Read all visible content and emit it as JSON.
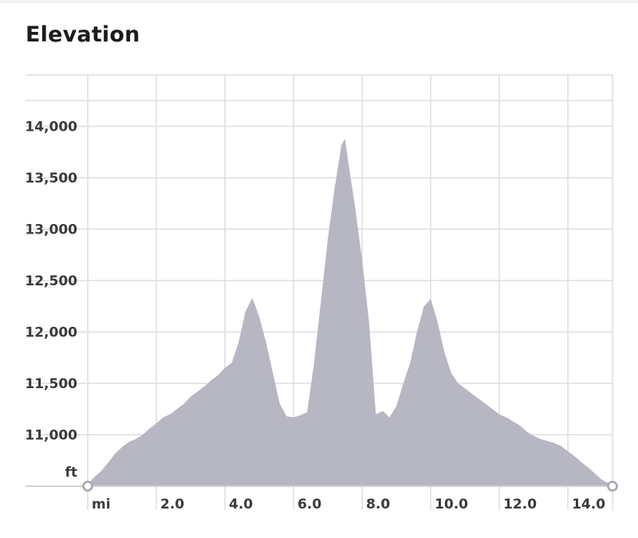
{
  "header": {
    "title": "Elevation"
  },
  "chart_data": {
    "type": "area",
    "title": "Elevation",
    "xunit": "mi",
    "yunit": "ft",
    "xlim": [
      0,
      15.3
    ],
    "ylim": [
      10500,
      14500
    ],
    "yticks": [
      "11,000",
      "11,500",
      "12,000",
      "12,500",
      "13,000",
      "13,500",
      "14,000"
    ],
    "ytick_values": [
      11000,
      11500,
      12000,
      12500,
      13000,
      13500,
      14000
    ],
    "xticks": [
      "2.0",
      "4.0",
      "6.0",
      "8.0",
      "10.0",
      "12.0",
      "14.0"
    ],
    "xtick_values": [
      2,
      4,
      6,
      8,
      10,
      12,
      14
    ],
    "grid": true,
    "fill_color": "#b7b6c3",
    "grid_color": "#dedde2",
    "series": [
      {
        "x": [
          0.0,
          0.2,
          0.4,
          0.6,
          0.8,
          1.0,
          1.2,
          1.4,
          1.6,
          1.8,
          2.0,
          2.2,
          2.4,
          2.6,
          2.8,
          3.0,
          3.2,
          3.4,
          3.6,
          3.8,
          4.0,
          4.2,
          4.4,
          4.6,
          4.8,
          5.0,
          5.2,
          5.4,
          5.6,
          5.8,
          6.0,
          6.2,
          6.4,
          6.6,
          6.8,
          7.0,
          7.2,
          7.4,
          7.5,
          7.6,
          7.8,
          8.0,
          8.2,
          8.4,
          8.6,
          8.8,
          9.0,
          9.2,
          9.4,
          9.6,
          9.8,
          10.0,
          10.2,
          10.4,
          10.6,
          10.8,
          11.0,
          11.2,
          11.4,
          11.6,
          11.8,
          12.0,
          12.2,
          12.4,
          12.6,
          12.8,
          13.0,
          13.2,
          13.4,
          13.6,
          13.8,
          14.0,
          14.2,
          14.4,
          14.6,
          14.8,
          15.0,
          15.3
        ],
        "y": [
          10520,
          10590,
          10650,
          10730,
          10820,
          10880,
          10930,
          10960,
          11000,
          11060,
          11110,
          11170,
          11200,
          11250,
          11300,
          11370,
          11420,
          11470,
          11530,
          11580,
          11650,
          11700,
          11900,
          12200,
          12330,
          12150,
          11900,
          11600,
          11300,
          11180,
          11170,
          11190,
          11220,
          11700,
          12300,
          12900,
          13400,
          13820,
          13880,
          13650,
          13200,
          12700,
          12100,
          11200,
          11230,
          11170,
          11280,
          11500,
          11700,
          12000,
          12250,
          12320,
          12100,
          11800,
          11600,
          11500,
          11450,
          11400,
          11350,
          11300,
          11250,
          11200,
          11170,
          11130,
          11090,
          11030,
          10990,
          10960,
          10940,
          10920,
          10890,
          10840,
          10790,
          10730,
          10680,
          10620,
          10560,
          10510
        ]
      }
    ]
  }
}
